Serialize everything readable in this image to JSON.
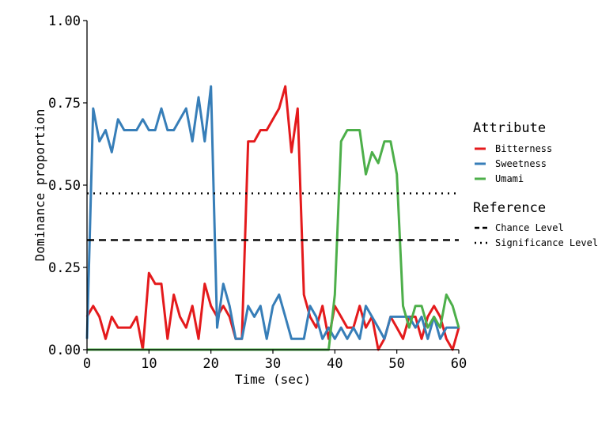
{
  "chart_data": {
    "type": "line",
    "xlabel": "Time (sec)",
    "ylabel": "Dominance proportion",
    "xlim": [
      0,
      60
    ],
    "ylim": [
      0,
      1
    ],
    "xticks": [
      0,
      10,
      20,
      30,
      40,
      50,
      60
    ],
    "yticks": [
      0,
      0.25,
      0.5,
      0.75,
      1
    ],
    "xtick_labels": [
      "0",
      "10",
      "20",
      "30",
      "40",
      "50",
      "60"
    ],
    "ytick_labels": [
      "0.00",
      "0.25",
      "0.50",
      "0.75",
      "1.00"
    ],
    "grid": false,
    "legend_placement": "right",
    "legend_titles": {
      "attribute": "Attribute",
      "reference": "Reference"
    },
    "series": [
      {
        "name": "Bitterness",
        "color": "#e41a1c",
        "x": [
          0,
          1,
          2,
          3,
          4,
          5,
          6,
          7,
          8,
          9,
          10,
          11,
          12,
          13,
          14,
          15,
          16,
          17,
          18,
          19,
          20,
          21,
          22,
          23,
          24,
          25,
          26,
          27,
          28,
          29,
          30,
          31,
          32,
          33,
          34,
          35,
          36,
          37,
          38,
          39,
          40,
          41,
          42,
          43,
          44,
          45,
          46,
          47,
          48,
          49,
          50,
          51,
          52,
          53,
          54,
          55,
          56,
          57,
          58,
          59,
          60
        ],
        "y": [
          0.1,
          0.133,
          0.1,
          0.033,
          0.1,
          0.067,
          0.067,
          0.067,
          0.1,
          0,
          0.233,
          0.2,
          0.2,
          0.033,
          0.167,
          0.1,
          0.067,
          0.133,
          0.033,
          0.2,
          0.133,
          0.1,
          0.133,
          0.1,
          0.033,
          0.033,
          0.633,
          0.633,
          0.667,
          0.667,
          0.7,
          0.733,
          0.8,
          0.6,
          0.733,
          0.167,
          0.1,
          0.067,
          0.133,
          0.033,
          0.133,
          0.1,
          0.067,
          0.067,
          0.133,
          0.067,
          0.1,
          0,
          0.033,
          0.1,
          0.067,
          0.033,
          0.1,
          0.1,
          0.033,
          0.1,
          0.133,
          0.1,
          0.033,
          0,
          0.067
        ]
      },
      {
        "name": "Sweetness",
        "color": "#377eb8",
        "x": [
          0,
          1,
          2,
          3,
          4,
          5,
          6,
          7,
          8,
          9,
          10,
          11,
          12,
          13,
          14,
          15,
          16,
          17,
          18,
          19,
          20,
          21,
          22,
          23,
          24,
          25,
          26,
          27,
          28,
          29,
          30,
          31,
          32,
          33,
          34,
          35,
          36,
          37,
          38,
          39,
          40,
          41,
          42,
          43,
          44,
          45,
          46,
          47,
          48,
          49,
          50,
          51,
          52,
          53,
          54,
          55,
          56,
          57,
          58,
          59,
          60
        ],
        "y": [
          0.033,
          0.733,
          0.633,
          0.667,
          0.6,
          0.7,
          0.667,
          0.667,
          0.667,
          0.7,
          0.667,
          0.667,
          0.733,
          0.667,
          0.667,
          0.7,
          0.733,
          0.633,
          0.767,
          0.633,
          0.8,
          0.067,
          0.2,
          0.133,
          0.033,
          0.033,
          0.133,
          0.1,
          0.133,
          0.033,
          0.133,
          0.167,
          0.1,
          0.033,
          0.033,
          0.033,
          0.133,
          0.1,
          0.033,
          0.067,
          0.033,
          0.067,
          0.033,
          0.067,
          0.033,
          0.133,
          0.1,
          0.067,
          0.033,
          0.1,
          0.1,
          0.1,
          0.1,
          0.067,
          0.1,
          0.033,
          0.1,
          0.033,
          0.067,
          0.067,
          0.067
        ]
      },
      {
        "name": "Umami",
        "color": "#4daf4a",
        "x": [
          0,
          1,
          2,
          3,
          4,
          5,
          6,
          7,
          8,
          9,
          10,
          11,
          12,
          13,
          14,
          15,
          16,
          17,
          18,
          19,
          20,
          21,
          22,
          23,
          24,
          25,
          26,
          27,
          28,
          29,
          30,
          31,
          32,
          33,
          34,
          35,
          36,
          37,
          38,
          39,
          40,
          41,
          42,
          43,
          44,
          45,
          46,
          47,
          48,
          49,
          50,
          51,
          52,
          53,
          54,
          55,
          56,
          57,
          58,
          59,
          60
        ],
        "y": [
          0,
          0,
          0,
          0,
          0,
          0,
          0,
          0,
          0,
          0,
          0,
          0,
          0,
          0,
          0,
          0,
          0,
          0,
          0,
          0,
          0,
          0,
          0,
          0,
          0,
          0,
          0,
          0,
          0,
          0,
          0,
          0,
          0,
          0,
          0,
          0,
          0,
          0,
          0,
          0,
          0.167,
          0.633,
          0.667,
          0.667,
          0.667,
          0.533,
          0.6,
          0.567,
          0.633,
          0.633,
          0.533,
          0.133,
          0.067,
          0.133,
          0.133,
          0.067,
          0.1,
          0.067,
          0.167,
          0.133,
          0.067
        ]
      }
    ],
    "reference_lines": [
      {
        "name": "Chance Level",
        "y": 0.333,
        "style": "dashed"
      },
      {
        "name": "Significance Level",
        "y": 0.475,
        "style": "dotted"
      }
    ]
  }
}
